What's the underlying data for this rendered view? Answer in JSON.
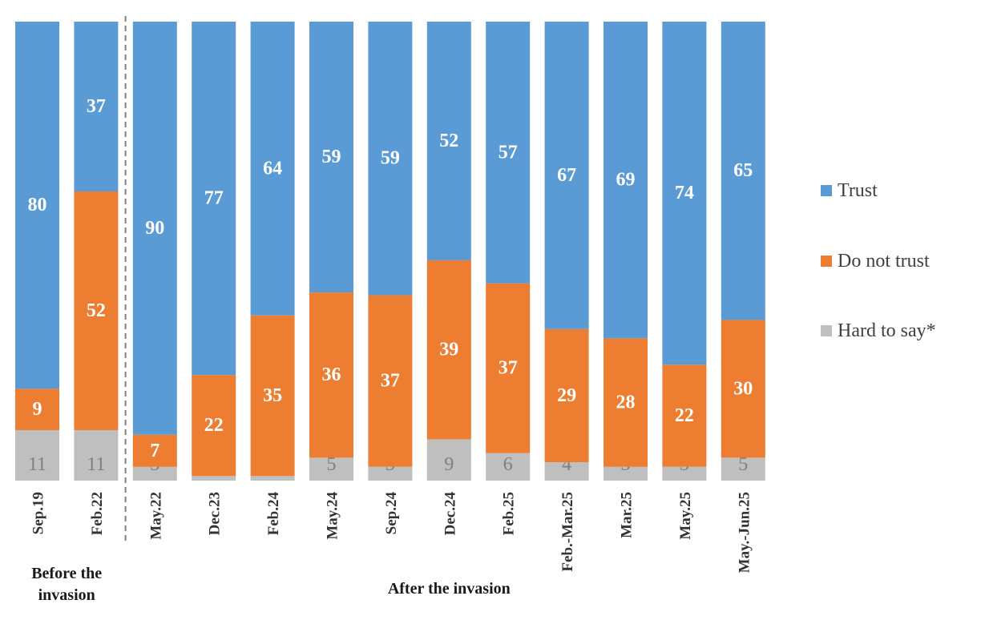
{
  "chart_data": {
    "type": "bar",
    "stacked": true,
    "normalized_percent": true,
    "categories": [
      "Sep.19",
      "Feb.22",
      "May.22",
      "Dec.23",
      "Feb.24",
      "May.24",
      "Sep.24",
      "Dec.24",
      "Feb.25",
      "Feb.-Mar.25",
      "Mar.25",
      "May.25",
      "May.-Jun.25"
    ],
    "series": [
      {
        "name": "Hard to say*",
        "color": "#bfbfbf",
        "values": [
          11,
          11,
          3,
          1,
          1,
          5,
          3,
          9,
          6,
          4,
          3,
          3,
          5
        ]
      },
      {
        "name": "Do not trust",
        "color": "#ed7d31",
        "values": [
          9,
          52,
          7,
          22,
          35,
          36,
          37,
          39,
          37,
          29,
          28,
          22,
          30
        ]
      },
      {
        "name": "Trust",
        "color": "#5b9bd5",
        "values": [
          80,
          37,
          90,
          77,
          64,
          59,
          59,
          52,
          57,
          67,
          69,
          74,
          65
        ]
      }
    ],
    "legend_order": [
      "Trust",
      "Do not trust",
      "Hard to say*"
    ],
    "legend_position": "right",
    "groups": [
      {
        "label": "Before the invasion",
        "categories": [
          "Sep.19",
          "Feb.22"
        ]
      },
      {
        "label": "After the invasion",
        "categories": [
          "May.22",
          "Dec.23",
          "Feb.24",
          "May.24",
          "Sep.24",
          "Dec.24",
          "Feb.25",
          "Feb.-Mar.25",
          "Mar.25",
          "May.25",
          "May.-Jun.25"
        ]
      }
    ],
    "separator_after": "Feb.22",
    "ylim": [
      0,
      100
    ],
    "grid": false,
    "title": "",
    "xlabel": "",
    "ylabel": ""
  }
}
